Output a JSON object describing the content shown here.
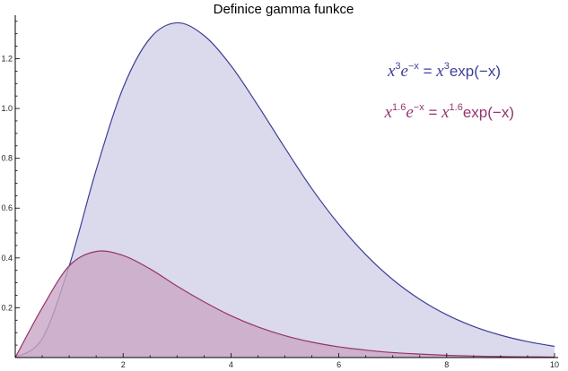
{
  "chart_data": {
    "type": "area",
    "title": "Definice gamma funkce",
    "xlabel": "",
    "ylabel": "",
    "xlim": [
      0,
      10
    ],
    "ylim": [
      0,
      1.36
    ],
    "x_ticks": [
      2,
      4,
      6,
      8,
      10
    ],
    "x_tick_labels": [
      "2",
      "4",
      "6",
      "8",
      "10"
    ],
    "y_ticks": [
      0.2,
      0.4,
      0.6,
      0.8,
      1.0,
      1.2
    ],
    "y_tick_labels": [
      "0.2",
      "0.4",
      "0.6",
      "0.8",
      "1.0",
      "1.2"
    ],
    "grid": false,
    "legend_position": "top-right",
    "x": [
      0,
      0.5,
      1,
      1.5,
      2,
      2.5,
      3,
      3.5,
      4,
      4.5,
      5,
      5.5,
      6,
      6.5,
      7,
      7.5,
      8,
      8.5,
      9,
      9.5,
      10
    ],
    "series": [
      {
        "name": "x^3 e^-x = x^3 exp(-x)",
        "legend_parts": {
          "base": "x",
          "exp": "3",
          "e": "e",
          "eexp": "−x",
          "eq": " = ",
          "base2": "x",
          "exp2": "3",
          "tail": "exp(−x)"
        },
        "line_color": "#3d3f96",
        "fill_color": "#d8d8eb",
        "values": [
          0,
          0.076,
          0.368,
          0.753,
          1.083,
          1.282,
          1.344,
          1.293,
          1.172,
          1.012,
          0.842,
          0.678,
          0.535,
          0.413,
          0.313,
          0.234,
          0.172,
          0.125,
          0.09,
          0.064,
          0.045
        ]
      },
      {
        "name": "x^1.6 e^-x = x^1.6 exp(-x)",
        "legend_parts": {
          "base": "x",
          "exp": "1.6",
          "e": "e",
          "eexp": "−x",
          "eq": " = ",
          "base2": "x",
          "exp2": "1.6",
          "tail": "exp(−x)"
        },
        "line_color": "#97336e",
        "fill_color": "#c9a6c6",
        "values": [
          0,
          0.2,
          0.368,
          0.426,
          0.41,
          0.356,
          0.287,
          0.224,
          0.168,
          0.123,
          0.088,
          0.062,
          0.043,
          0.03,
          0.02,
          0.014,
          0.009,
          0.006,
          0.004,
          0.003,
          0.002
        ]
      }
    ]
  }
}
